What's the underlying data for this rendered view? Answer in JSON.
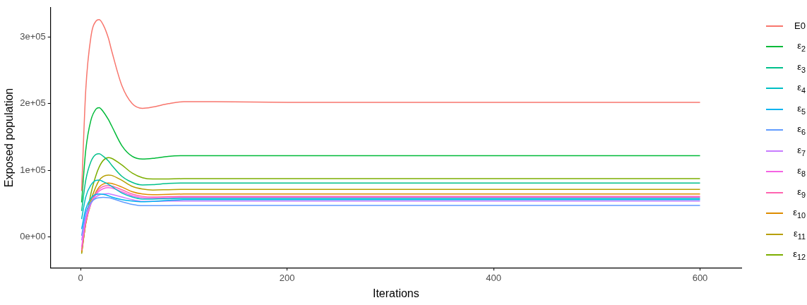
{
  "chart_data": {
    "type": "line",
    "xlabel": "Iterations",
    "ylabel": "Exposed population",
    "x": [
      1,
      5,
      10,
      15,
      18,
      22,
      27,
      30,
      40,
      50,
      60,
      70,
      85,
      100,
      130,
      200,
      600
    ],
    "xlim": [
      -29,
      640
    ],
    "xticks": [
      0,
      200,
      400,
      600
    ],
    "ylim": [
      -46000,
      344000
    ],
    "yticks": [
      {
        "value": 0,
        "label": "0e+00"
      },
      {
        "value": 100000,
        "label": "1e+05"
      },
      {
        "value": 200000,
        "label": "2e+05"
      },
      {
        "value": 300000,
        "label": "3e+05"
      }
    ],
    "grid": false,
    "legend": "right",
    "marker": "none",
    "line_style": "solid",
    "series": [
      {
        "name": "E0",
        "color": "#f8766d",
        "values": [
          69000,
          220000,
          300000,
          324000,
          326000,
          318000,
          298000,
          280000,
          227000,
          200000,
          193000,
          195000,
          200000,
          203000,
          203000,
          202000,
          202000
        ]
      },
      {
        "name": "ε$_{2}$",
        "color": "#00ba38",
        "values": [
          52000,
          130000,
          175000,
          192000,
          194000,
          188000,
          176000,
          167000,
          137000,
          121000,
          117000,
          118000,
          121000,
          122000,
          122000,
          122000,
          122000
        ]
      },
      {
        "name": "ε$_{3}$",
        "color": "#00c08b",
        "values": [
          39000,
          85000,
          113000,
          124000,
          125000,
          121000,
          114000,
          108000,
          91000,
          82000,
          78000,
          78500,
          80500,
          81000,
          81000,
          81000,
          81000
        ]
      },
      {
        "name": "ε$_{4}$",
        "color": "#00bfc4",
        "values": [
          27000,
          60000,
          78000,
          85000,
          85500,
          83000,
          79000,
          76000,
          66000,
          60000,
          57000,
          57000,
          57500,
          58000,
          58000,
          58000,
          58000
        ]
      },
      {
        "name": "ε$_{5}$",
        "color": "#00b4f0",
        "values": [
          12000,
          42000,
          58000,
          64000,
          64500,
          64000,
          62000,
          60000,
          56000,
          54000,
          53000,
          53500,
          55000,
          56000,
          56000,
          56000,
          56000
        ]
      },
      {
        "name": "ε$_{6}$",
        "color": "#619cff",
        "values": [
          2000,
          36000,
          52000,
          58000,
          59000,
          59500,
          59000,
          58000,
          53000,
          49000,
          47000,
          47000,
          47200,
          47500,
          47500,
          47500,
          47500
        ]
      },
      {
        "name": "ε$_{7}$",
        "color": "#c77cff",
        "values": [
          -5000,
          30000,
          50000,
          60000,
          63000,
          64500,
          65000,
          64000,
          60000,
          56000,
          53500,
          53500,
          54000,
          54000,
          54000,
          54000,
          54000
        ]
      },
      {
        "name": "ε$_{8}$",
        "color": "#f564e3",
        "values": [
          -15000,
          25000,
          50000,
          64000,
          69000,
          72500,
          74000,
          73500,
          68000,
          62000,
          59000,
          58500,
          59000,
          59500,
          59500,
          59500,
          59500
        ]
      },
      {
        "name": "ε$_{9}$",
        "color": "#ff64b0",
        "values": [
          -20000,
          22000,
          50000,
          66000,
          72000,
          76000,
          77000,
          76500,
          71000,
          64500,
          61000,
          60000,
          60500,
          61000,
          61000,
          61000,
          61000
        ]
      },
      {
        "name": "ε$_{10}$",
        "color": "#de8c00",
        "values": [
          -22000,
          20000,
          50000,
          68000,
          75000,
          79500,
          81000,
          80500,
          75000,
          68000,
          64500,
          63500,
          64000,
          64500,
          64500,
          64500,
          64500
        ]
      },
      {
        "name": "ε$_{11}$",
        "color": "#b79f00",
        "values": [
          -24000,
          20000,
          55000,
          76000,
          85000,
          91000,
          93000,
          92500,
          85000,
          76000,
          72000,
          70500,
          71000,
          71500,
          71500,
          71500,
          71500
        ]
      },
      {
        "name": "ε$_{12}$",
        "color": "#7cae00",
        "values": [
          -25000,
          22000,
          65000,
          93000,
          105000,
          115000,
          119000,
          118000,
          108000,
          96000,
          89000,
          87000,
          87200,
          87500,
          87500,
          87500,
          87500
        ]
      }
    ]
  }
}
